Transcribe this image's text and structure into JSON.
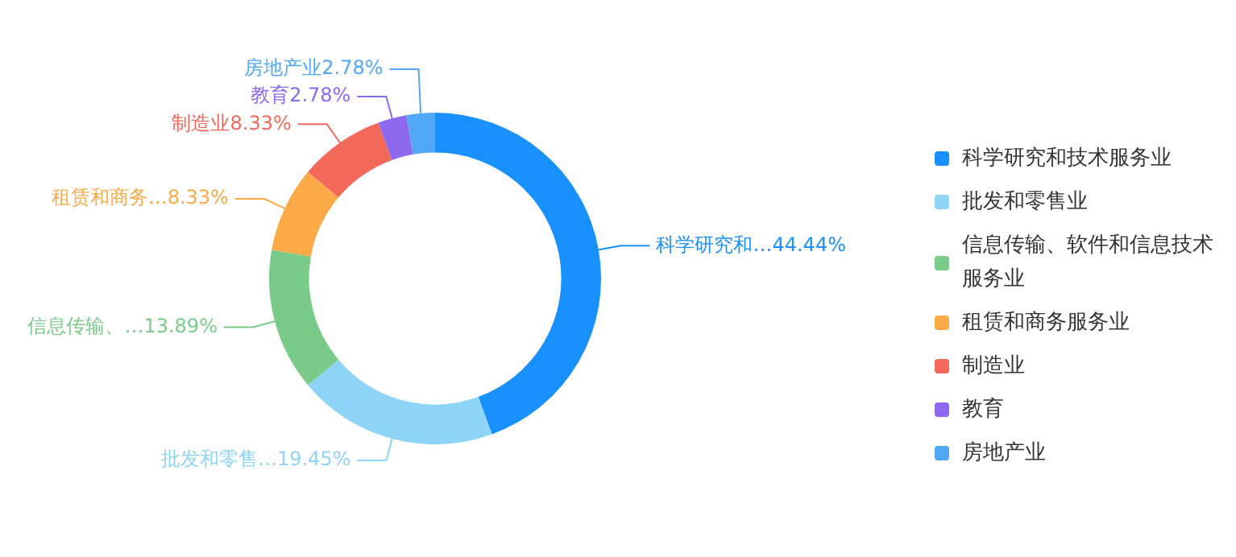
{
  "chart_data": {
    "type": "donut",
    "categories": [
      "科学研究和技术服务业",
      "批发和零售业",
      "信息传输、软件和信息技术服务业",
      "租赁和商务服务业",
      "制造业",
      "教育",
      "房地产业"
    ],
    "values": [
      44.44,
      19.45,
      13.89,
      8.33,
      8.33,
      2.78,
      2.78
    ],
    "colors": [
      "#1890ff",
      "#8dd4f7",
      "#7acb89",
      "#fbaa47",
      "#f2695a",
      "#8d69f0",
      "#52a7f7"
    ],
    "value_labels": [
      "科学研究和…44.44%",
      "批发和零售…19.45%",
      "信息传输、…13.89%",
      "租赁和商务…8.33%",
      "制造业8.33%",
      "教育2.78%",
      "房地产业2.78%"
    ],
    "legend": "right"
  }
}
